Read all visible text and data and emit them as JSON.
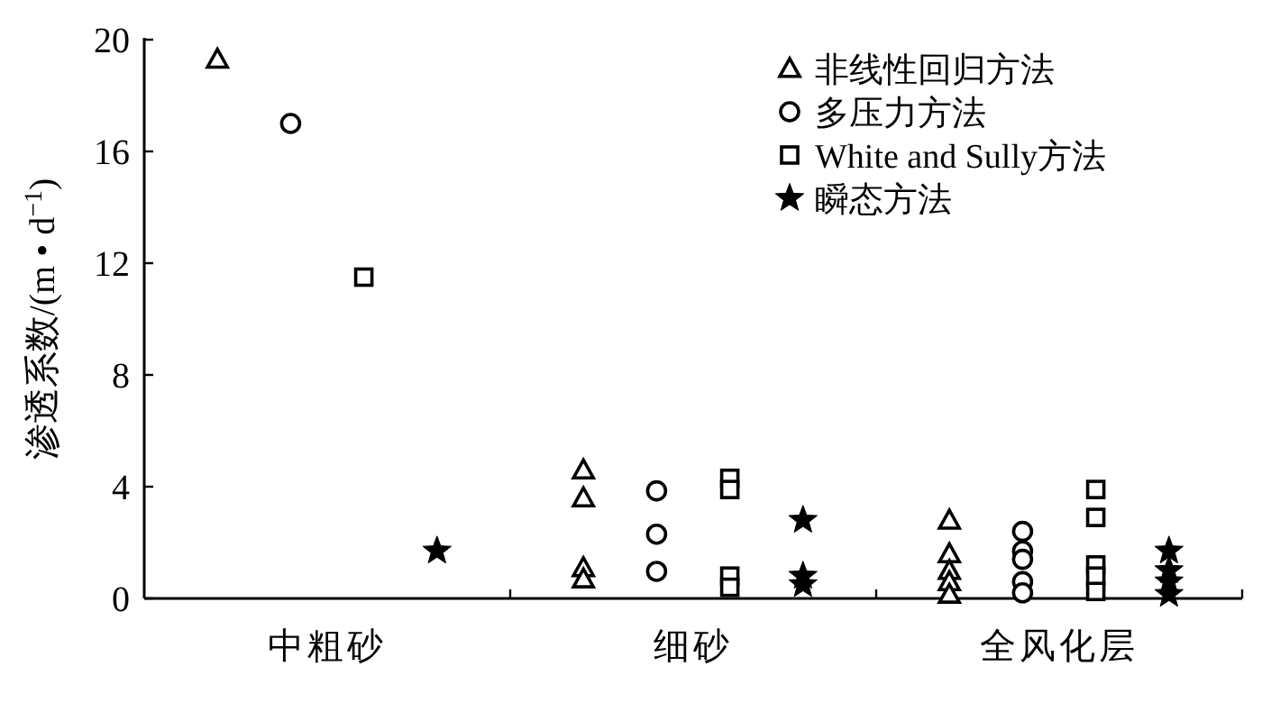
{
  "chart_data": {
    "type": "scatter",
    "ylabel": "渗透系数/(m • d$^{−1}$)",
    "categories": [
      "中粗砂",
      "细砂",
      "全风化层"
    ],
    "ylim": [
      0,
      20
    ],
    "yticks": [
      0,
      4,
      8,
      12,
      16,
      20
    ],
    "legend": "top right",
    "grid": false,
    "series": [
      {
        "name": "非线性回归方法",
        "color": "#000000",
        "marker": "triangle",
        "x": [
          "中粗砂",
          "细砂",
          "细砂",
          "细砂",
          "细砂",
          "全风化层",
          "全风化层",
          "全风化层",
          "全风化层",
          "全风化层"
        ],
        "values": [
          19.3,
          4.6,
          3.6,
          1.1,
          0.7,
          2.8,
          1.6,
          1.0,
          0.6,
          0.15
        ]
      },
      {
        "name": "多压力方法",
        "color": "#000000",
        "marker": "circle",
        "x": [
          "中粗砂",
          "细砂",
          "细砂",
          "细砂",
          "全风化层",
          "全风化层",
          "全风化层",
          "全风化层",
          "全风化层"
        ],
        "values": [
          17.0,
          3.85,
          2.3,
          0.97,
          2.4,
          1.7,
          1.4,
          0.6,
          0.2
        ]
      },
      {
        "name": "White and Sully方法",
        "color": "#000000",
        "marker": "square",
        "x": [
          "中粗砂",
          "细砂",
          "细砂",
          "细砂",
          "细砂",
          "全风化层",
          "全风化层",
          "全风化层",
          "全风化层",
          "全风化层"
        ],
        "values": [
          11.5,
          4.3,
          3.9,
          0.8,
          0.4,
          3.9,
          2.9,
          1.2,
          0.8,
          0.25
        ]
      },
      {
        "name": "瞬态方法",
        "color": "#000000",
        "marker": "star",
        "x": [
          "中粗砂",
          "细砂",
          "细砂",
          "细砂",
          "全风化层",
          "全风化层",
          "全风化层",
          "全风化层"
        ],
        "values": [
          1.7,
          2.8,
          0.8,
          0.5,
          1.7,
          1.0,
          0.6,
          0.15
        ]
      }
    ]
  }
}
